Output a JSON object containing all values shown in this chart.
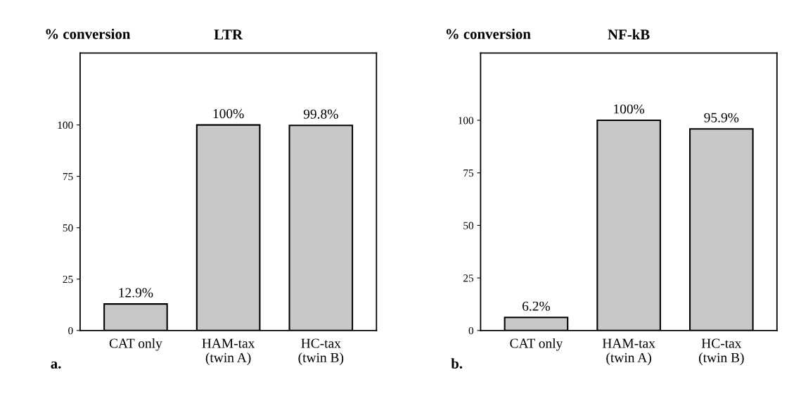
{
  "chart_data": [
    {
      "type": "bar",
      "title": "LTR",
      "ylabel": "% conversion",
      "categories": [
        "CAT only",
        "HAM-tax\n(twin A)",
        "HC-tax\n(twin B)"
      ],
      "values": [
        12.9,
        100,
        99.8
      ],
      "value_labels": [
        "12.9%",
        "100%",
        "99.8%"
      ],
      "color": "#c8c8c8",
      "ylim": [
        0,
        135
      ],
      "yticks": [
        0,
        25,
        50,
        75,
        100
      ],
      "grid": false,
      "legend": false,
      "annotations": [
        "a."
      ]
    },
    {
      "type": "bar",
      "title": "NF-kB",
      "ylabel": "% conversion",
      "categories": [
        "CAT only",
        "HAM-tax\n(twin A)",
        "HC-tax\n(twin B)"
      ],
      "values": [
        6.2,
        100,
        95.9
      ],
      "value_labels": [
        "6.2%",
        "100%",
        "95.9%"
      ],
      "color": "#c8c8c8",
      "ylim": [
        0,
        132
      ],
      "yticks": [
        0,
        25,
        50,
        75,
        100
      ],
      "grid": false,
      "legend": false,
      "annotations": [
        "b."
      ]
    }
  ]
}
